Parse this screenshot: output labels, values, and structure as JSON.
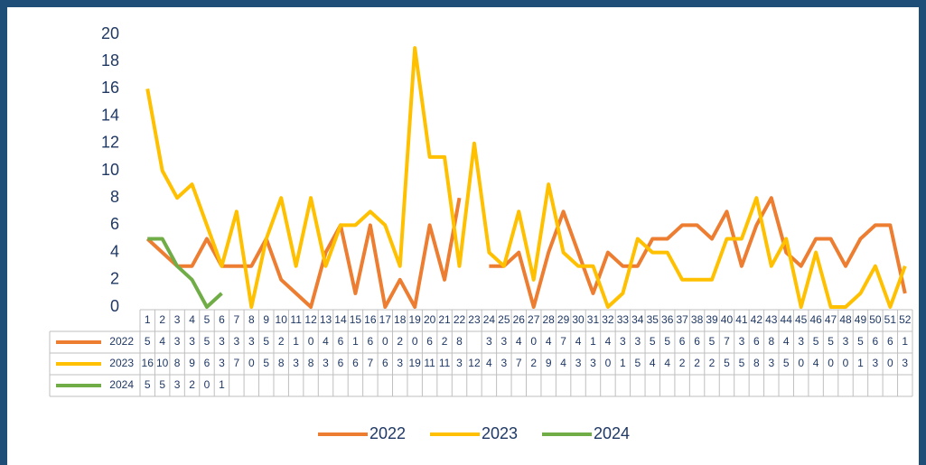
{
  "chart_data": {
    "type": "line",
    "categories": [
      "1",
      "2",
      "3",
      "4",
      "5",
      "6",
      "7",
      "8",
      "9",
      "10",
      "11",
      "12",
      "13",
      "14",
      "15",
      "16",
      "17",
      "18",
      "19",
      "20",
      "21",
      "22",
      "23",
      "24",
      "25",
      "26",
      "27",
      "28",
      "29",
      "30",
      "31",
      "32",
      "33",
      "34",
      "35",
      "36",
      "37",
      "38",
      "39",
      "40",
      "41",
      "42",
      "43",
      "44",
      "45",
      "46",
      "47",
      "48",
      "49",
      "50",
      "51",
      "52"
    ],
    "series": [
      {
        "name": "2022",
        "color": "#ed7d31",
        "values": [
          5,
          4,
          3,
          3,
          5,
          3,
          3,
          3,
          5,
          2,
          1,
          0,
          4,
          6,
          1,
          6,
          0,
          2,
          0,
          6,
          2,
          8,
          null,
          3,
          3,
          4,
          0,
          4,
          7,
          4,
          1,
          4,
          3,
          3,
          5,
          5,
          6,
          6,
          5,
          7,
          3,
          6,
          8,
          4,
          3,
          5,
          5,
          3,
          5,
          6,
          6,
          1
        ]
      },
      {
        "name": "2023",
        "color": "#ffc000",
        "values": [
          16,
          10,
          8,
          9,
          6,
          3,
          7,
          0,
          5,
          8,
          3,
          8,
          3,
          6,
          6,
          7,
          6,
          3,
          19,
          11,
          11,
          3,
          12,
          4,
          3,
          7,
          2,
          9,
          4,
          3,
          3,
          0,
          1,
          5,
          4,
          4,
          2,
          2,
          2,
          5,
          5,
          8,
          3,
          5,
          0,
          4,
          0,
          0,
          1,
          3,
          0,
          3
        ]
      },
      {
        "name": "2024",
        "color": "#70ad47",
        "values": [
          5,
          5,
          3,
          2,
          0,
          1,
          null,
          null,
          null,
          null,
          null,
          null,
          null,
          null,
          null,
          null,
          null,
          null,
          null,
          null,
          null,
          null,
          null,
          null,
          null,
          null,
          null,
          null,
          null,
          null,
          null,
          null,
          null,
          null,
          null,
          null,
          null,
          null,
          null,
          null,
          null,
          null,
          null,
          null,
          null,
          null,
          null,
          null,
          null,
          null,
          null,
          null
        ]
      }
    ],
    "ylim": [
      0,
      20
    ],
    "yticks": [
      0,
      2,
      4,
      6,
      8,
      10,
      12,
      14,
      16,
      18,
      20
    ],
    "grid": false,
    "legend": "bottom",
    "data_table": true
  }
}
